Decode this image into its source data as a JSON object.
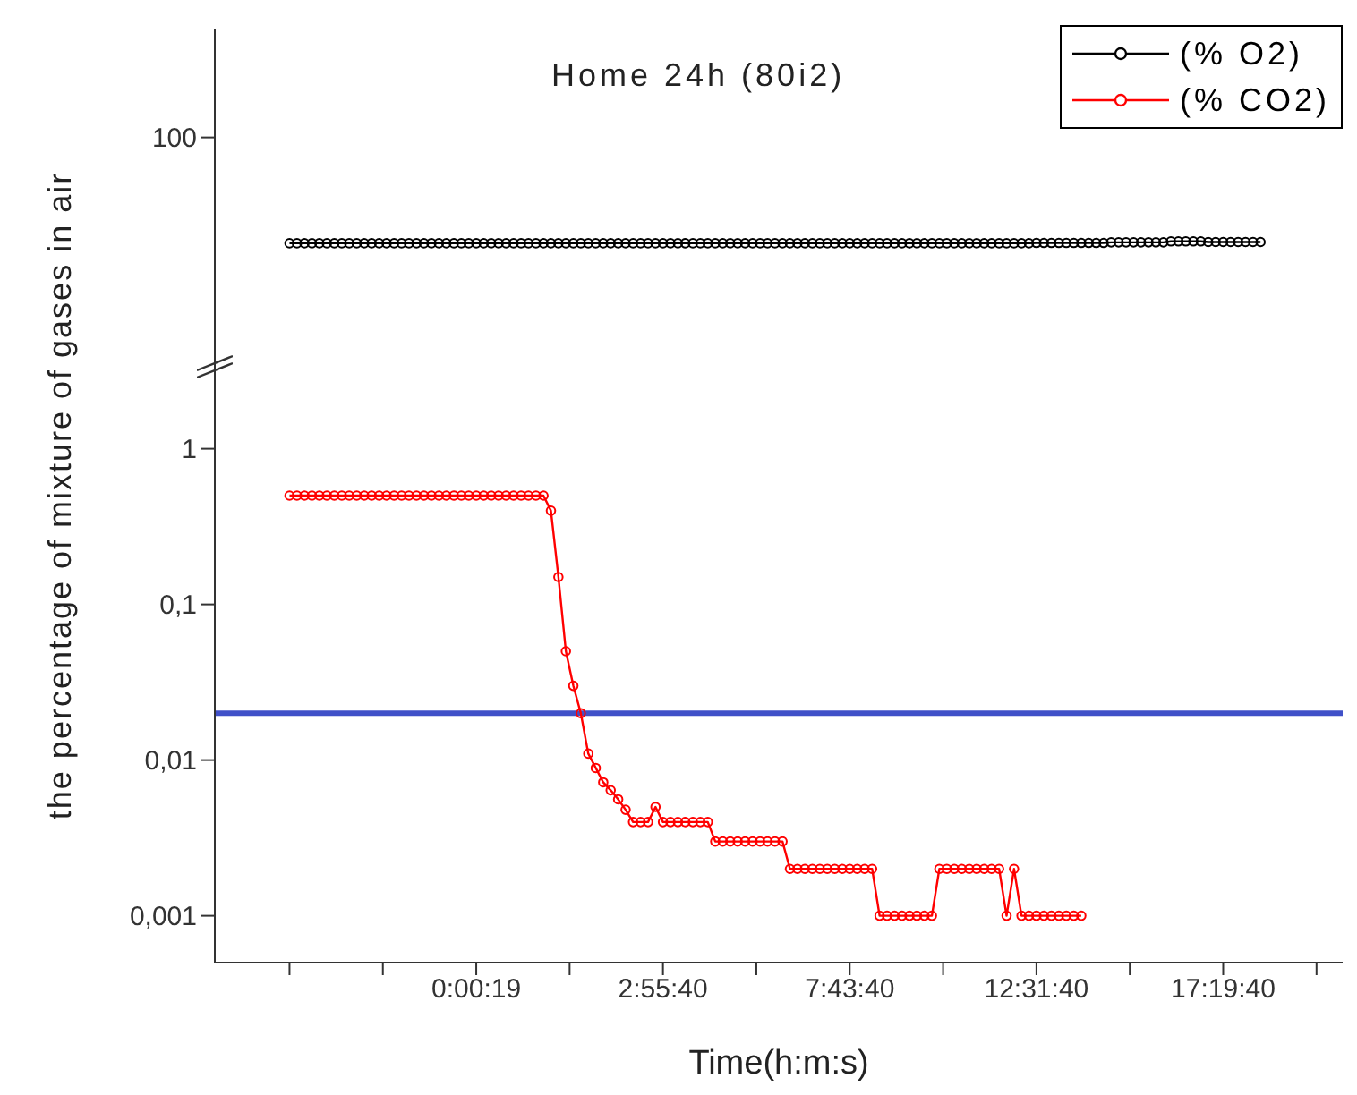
{
  "chart_data": {
    "type": "line",
    "title": "Home 24h (80i2)",
    "xlabel": "Time(h:m:s)",
    "ylabel": "the percentage of mixture of gases in air",
    "log": "y",
    "legend": "top right",
    "marker": "circle",
    "categories": [
      null,
      null,
      null,
      null,
      null,
      null,
      null,
      null,
      null,
      null,
      null,
      null,
      null,
      null,
      null,
      null,
      null,
      null,
      null,
      null,
      null,
      null,
      null,
      null,
      null,
      "0:00:19",
      null,
      null,
      null,
      null,
      null,
      null,
      null,
      null,
      null,
      null,
      null,
      null,
      null,
      null,
      null,
      null,
      null,
      null,
      null,
      null,
      null,
      null,
      null,
      null,
      "2:55:40",
      null,
      null,
      null,
      null,
      null,
      null,
      null,
      null,
      null,
      null,
      null,
      null,
      null,
      null,
      null,
      null,
      null,
      null,
      null,
      null,
      null,
      null,
      null,
      null,
      "7:43:40",
      null,
      null,
      null,
      null,
      null,
      null,
      null,
      null,
      null,
      null,
      null,
      null,
      null,
      null,
      null,
      null,
      null,
      null,
      null,
      null,
      null,
      null,
      null,
      null,
      "12:31:40",
      null,
      null,
      null,
      null,
      null,
      null,
      null,
      null,
      null,
      null,
      null,
      null,
      null,
      null,
      null,
      null,
      null,
      null,
      null,
      null,
      null,
      null,
      null,
      null,
      "17:19:40",
      null,
      null,
      null,
      null,
      null
    ],
    "ylim": [
      0.0005,
      500
    ],
    "yticks": [
      {
        "value": 0.001,
        "label": "0,001"
      },
      {
        "value": 0.01,
        "label": "0,01"
      },
      {
        "value": 0.1,
        "label": "0,1"
      },
      1,
      100
    ],
    "ref_lines": [
      {
        "axis": "y",
        "value": 0.02,
        "color": "#4050c8"
      }
    ],
    "series": [
      {
        "name": "(% O2)",
        "color": "#000000",
        "values": [
          20.9,
          20.9,
          20.9,
          20.9,
          20.9,
          20.9,
          20.9,
          20.9,
          20.9,
          20.9,
          20.9,
          20.9,
          20.9,
          20.9,
          20.9,
          20.9,
          20.9,
          20.9,
          20.9,
          20.9,
          20.9,
          20.9,
          20.9,
          20.9,
          20.9,
          20.9,
          20.9,
          20.9,
          20.9,
          20.9,
          20.9,
          20.9,
          20.9,
          20.9,
          20.9,
          20.9,
          20.9,
          20.9,
          20.9,
          20.9,
          20.9,
          20.9,
          20.9,
          20.9,
          20.9,
          20.9,
          20.9,
          20.9,
          20.9,
          20.9,
          20.9,
          20.9,
          20.9,
          20.9,
          20.9,
          20.9,
          20.9,
          20.9,
          20.9,
          20.9,
          20.9,
          20.9,
          20.9,
          20.9,
          20.9,
          20.9,
          20.9,
          20.9,
          20.9,
          20.9,
          20.9,
          20.9,
          20.9,
          20.9,
          20.9,
          20.9,
          20.9,
          20.9,
          20.9,
          20.9,
          20.9,
          20.9,
          20.9,
          20.9,
          20.9,
          20.9,
          20.9,
          20.9,
          20.9,
          20.9,
          20.9,
          20.9,
          20.9,
          20.9,
          20.9,
          20.9,
          20.9,
          20.9,
          20.9,
          20.9,
          21.0,
          21.0,
          21.0,
          21.0,
          21.0,
          21.0,
          21.0,
          21.0,
          21.0,
          21.0,
          21.2,
          21.2,
          21.2,
          21.2,
          21.2,
          21.2,
          21.2,
          21.2,
          21.5,
          21.5,
          21.5,
          21.5,
          21.5,
          21.3,
          21.3,
          21.3,
          21.3,
          21.3,
          21.3,
          21.3,
          21.3
        ]
      },
      {
        "name": "(% CO2)",
        "color": "#ff0000",
        "values": [
          0.5,
          0.5,
          0.5,
          0.5,
          0.5,
          0.5,
          0.5,
          0.5,
          0.5,
          0.5,
          0.5,
          0.5,
          0.5,
          0.5,
          0.5,
          0.5,
          0.5,
          0.5,
          0.5,
          0.5,
          0.5,
          0.5,
          0.5,
          0.5,
          0.5,
          0.5,
          0.5,
          0.5,
          0.5,
          0.5,
          0.5,
          0.5,
          0.5,
          0.5,
          0.5,
          0.4,
          0.15,
          0.05,
          0.03,
          0.02,
          0.011,
          0.0089,
          0.0072,
          0.0064,
          0.0056,
          0.0048,
          0.004,
          0.004,
          0.004,
          0.005,
          0.004,
          0.004,
          0.004,
          0.004,
          0.004,
          0.004,
          0.004,
          0.003,
          0.003,
          0.003,
          0.003,
          0.003,
          0.003,
          0.003,
          0.003,
          0.003,
          0.003,
          0.002,
          0.002,
          0.002,
          0.002,
          0.002,
          0.002,
          0.002,
          0.002,
          0.002,
          0.002,
          0.002,
          0.002,
          0.001,
          0.001,
          0.001,
          0.001,
          0.001,
          0.001,
          0.001,
          0.001,
          0.002,
          0.002,
          0.002,
          0.002,
          0.002,
          0.002,
          0.002,
          0.002,
          0.002,
          0.001,
          0.002,
          0.001,
          0.001,
          0.001,
          0.001,
          0.001,
          0.001,
          0.001,
          0.001,
          0.001,
          null,
          null,
          null,
          null,
          null,
          null,
          null,
          null,
          null,
          null,
          null,
          null,
          null,
          null,
          null,
          null,
          null,
          null,
          null,
          null,
          null,
          null,
          null,
          null
        ]
      }
    ]
  }
}
